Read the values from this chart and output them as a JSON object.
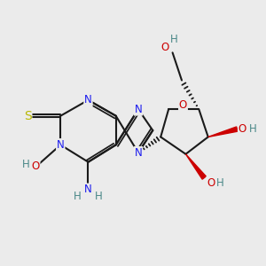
{
  "bg": "#ebebeb",
  "bc": "#1a1a1a",
  "Nc": "#1a1aee",
  "Oc": "#cc0000",
  "Sc": "#b8b800",
  "Hc": "#4a8888",
  "fs": 8.5,
  "lw": 1.5,
  "xlim": [
    0,
    10
  ],
  "ylim": [
    0,
    10
  ]
}
